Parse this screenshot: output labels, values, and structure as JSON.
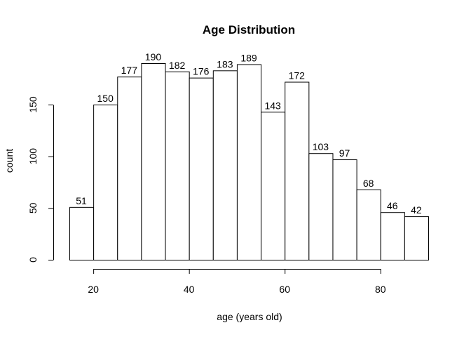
{
  "chart_data": {
    "type": "bar",
    "title": "Age Distribution",
    "xlabel": "age (years old)",
    "ylabel": "count",
    "bins": [
      [
        15,
        20
      ],
      [
        20,
        25
      ],
      [
        25,
        30
      ],
      [
        30,
        35
      ],
      [
        35,
        40
      ],
      [
        40,
        45
      ],
      [
        45,
        50
      ],
      [
        50,
        55
      ],
      [
        55,
        60
      ],
      [
        60,
        65
      ],
      [
        65,
        70
      ],
      [
        70,
        75
      ],
      [
        75,
        80
      ],
      [
        80,
        85
      ],
      [
        85,
        90
      ]
    ],
    "values": [
      51,
      150,
      177,
      190,
      182,
      176,
      183,
      189,
      143,
      172,
      103,
      97,
      68,
      46,
      42
    ],
    "x_ticks": [
      20,
      40,
      60,
      80
    ],
    "y_ticks": [
      0,
      50,
      100,
      150
    ],
    "xlim": [
      15,
      90
    ],
    "ylim": [
      0,
      190
    ],
    "grid": false,
    "legend": "none"
  }
}
